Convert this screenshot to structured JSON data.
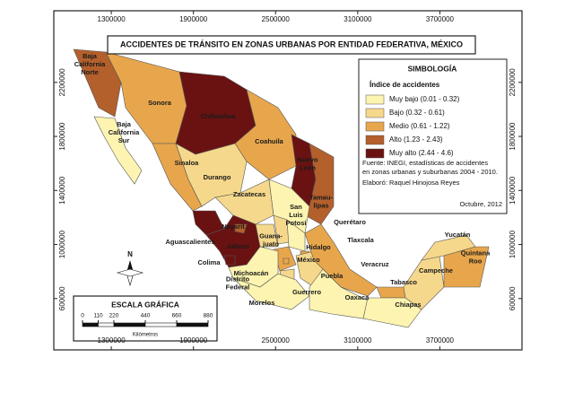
{
  "title": "ACCIDENTES DE TRÁNSITO EN ZONAS URBANAS POR ENTIDAD FEDERATIVA, MÉXICO",
  "graticule": {
    "xlim": [
      880000,
      4300000
    ],
    "ylim": [
      220000,
      2730000
    ],
    "xticks": [
      1300000,
      1900000,
      2500000,
      3100000,
      3700000
    ],
    "yticks": [
      2200000,
      1800000,
      1400000,
      1000000,
      600000
    ]
  },
  "legend": {
    "title": "SIMBOLOGÍA",
    "subtitle": "Índice de accidentes",
    "classes": [
      {
        "label": "Muy bajo (0.01 - 0.32)",
        "color": "#fcf4b0"
      },
      {
        "label": "Bajo (0.32 - 0.61)",
        "color": "#f6d88c"
      },
      {
        "label": "Medio (0.61 - 1.22)",
        "color": "#e8a64c"
      },
      {
        "label": "Alto (1.23 - 2.43)",
        "color": "#b3602c"
      },
      {
        "label": "Muy alto (2.44 - 4.6)",
        "color": "#6a1212"
      }
    ]
  },
  "source": [
    "Fuente: INEGI, estadísticas de accidentes",
    "en zonas urbanas y suburbanas 2004 - 2010."
  ],
  "author": "Elaboró: Raquel Hinojosa Reyes",
  "date": "Octubre, 2012",
  "north": "N",
  "scale": {
    "title": "ESCALA GRÁFICA",
    "ticks": [
      0,
      110,
      220,
      440,
      660,
      880
    ],
    "max": 880,
    "unit": "Kilómetros"
  },
  "states": [
    {
      "label": [
        "Baja",
        "California",
        "Norte"
      ],
      "class": "Alto (1.23 - 2.43)"
    },
    {
      "label": [
        "Baja",
        "California",
        "Sur"
      ],
      "class": "Muy bajo (0.01 - 0.32)"
    },
    {
      "label": [
        "Sonora"
      ],
      "class": "Medio (0.61 - 1.22)"
    },
    {
      "label": [
        "Chihuahua"
      ],
      "class": "Muy alto (2.44 - 4.6)"
    },
    {
      "label": [
        "Coahuila"
      ],
      "class": "Medio (0.61 - 1.22)"
    },
    {
      "label": [
        "Nuevo",
        "León"
      ],
      "class": "Muy alto (2.44 - 4.6)"
    },
    {
      "label": [
        "Tamau-",
        "lipas"
      ],
      "class": "Alto (1.23 - 2.43)"
    },
    {
      "label": [
        "Sinaloa"
      ],
      "class": "Medio (0.61 - 1.22)"
    },
    {
      "label": [
        "Durango"
      ],
      "class": "Bajo (0.32 - 0.61)"
    },
    {
      "label": [
        "Zacatecas"
      ],
      "class": "Bajo (0.32 - 0.61)"
    },
    {
      "label": [
        "San",
        "Luis",
        "Potosí"
      ],
      "class": "Muy bajo (0.01 - 0.32)"
    },
    {
      "label": [
        "Nayarit"
      ],
      "class": "Muy alto (2.44 - 4.6)"
    },
    {
      "label": [
        "Jalisco"
      ],
      "class": "Muy alto (2.44 - 4.6)"
    },
    {
      "label": [
        "Aguascalientes"
      ],
      "class": "Alto (1.23 - 2.43)"
    },
    {
      "label": [
        "Colima"
      ],
      "class": "Muy alto (2.44 - 4.6)"
    },
    {
      "label": [
        "Guana-",
        "juato"
      ],
      "class": "Bajo (0.32 - 0.61)"
    },
    {
      "label": [
        "Querétaro"
      ],
      "class": "Bajo (0.32 - 0.61)"
    },
    {
      "label": [
        "Hidalgo"
      ],
      "class": "Muy bajo (0.01 - 0.32)"
    },
    {
      "label": [
        "México"
      ],
      "class": "Medio (0.61 - 1.22)"
    },
    {
      "label": [
        "Distrito",
        "Federal"
      ],
      "class": "Medio (0.61 - 1.22)"
    },
    {
      "label": [
        "Michoacán"
      ],
      "class": "Muy bajo (0.01 - 0.32)"
    },
    {
      "label": [
        "Tlaxcala"
      ],
      "class": "Medio (0.61 - 1.22)"
    },
    {
      "label": [
        "Puebla"
      ],
      "class": "Bajo (0.32 - 0.61)"
    },
    {
      "label": [
        "Veracruz"
      ],
      "class": "Medio (0.61 - 1.22)"
    },
    {
      "label": [
        "Morelos"
      ],
      "class": "Bajo (0.32 - 0.61)"
    },
    {
      "label": [
        "Guerrero"
      ],
      "class": "Muy bajo (0.01 - 0.32)"
    },
    {
      "label": [
        "Oaxaca"
      ],
      "class": "Muy bajo (0.01 - 0.32)"
    },
    {
      "label": [
        "Tabasco"
      ],
      "class": "Medio (0.61 - 1.22)"
    },
    {
      "label": [
        "Chiapas"
      ],
      "class": "Muy bajo (0.01 - 0.32)"
    },
    {
      "label": [
        "Campeche"
      ],
      "class": "Bajo (0.32 - 0.61)"
    },
    {
      "label": [
        "Yucatán"
      ],
      "class": "Bajo (0.32 - 0.61)"
    },
    {
      "label": [
        "Quintana",
        "Roo"
      ],
      "class": "Medio (0.61 - 1.22)"
    }
  ]
}
